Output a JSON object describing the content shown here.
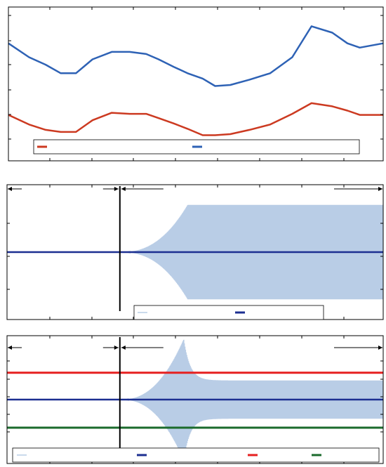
{
  "colors": {
    "red": "#cc3a21",
    "blue": "#2e62b5",
    "light_blue": "#b9cde6",
    "navy": "#1c2f91",
    "bright_red": "#e62020",
    "green": "#1b6b2c",
    "black": "#000000"
  },
  "chart_data": [
    {
      "type": "line",
      "title": "",
      "xlabel": "",
      "ylabel": "",
      "x": [
        0,
        0.15,
        0.27,
        0.38,
        0.49,
        0.61,
        0.75,
        0.88,
        1.0,
        1.09,
        1.2,
        1.3,
        1.41,
        1.5,
        1.61,
        1.75,
        1.9,
        2.06,
        2.2,
        2.35,
        2.46,
        2.55,
        2.72
      ],
      "xlim": [
        0,
        2.72
      ],
      "ylim": [
        0,
        7.2
      ],
      "grid": false,
      "legend": "bottom",
      "series": [
        {
          "color_key": "blue",
          "values": [
            5.5,
            4.85,
            4.5,
            4.1,
            4.1,
            4.75,
            5.1,
            5.1,
            5.0,
            4.75,
            4.4,
            4.1,
            3.85,
            3.5,
            3.55,
            3.8,
            4.1,
            4.85,
            6.3,
            6.0,
            5.5,
            5.3,
            5.5
          ]
        },
        {
          "color_key": "red",
          "values": [
            2.15,
            1.7,
            1.45,
            1.35,
            1.35,
            1.9,
            2.25,
            2.2,
            2.2,
            2.0,
            1.75,
            1.5,
            1.2,
            1.2,
            1.25,
            1.45,
            1.7,
            2.2,
            2.7,
            2.55,
            2.35,
            2.15,
            2.15
          ]
        }
      ],
      "legend_entries": [
        {
          "color_key": "red"
        },
        {
          "color_key": "blue"
        }
      ]
    },
    {
      "type": "line",
      "title": "",
      "xlim": [
        0,
        1
      ],
      "ylim": [
        -1,
        1
      ],
      "grid": false,
      "legend": "bottom-center",
      "vline_x": 0.3,
      "oscillation": {
        "start": 0.3,
        "peak_x": 0.48,
        "amplitude_peak": 0.7,
        "amplitude_steady": 0.7
      },
      "series": [
        {
          "color_key": "light_blue",
          "kind": "oscillation"
        },
        {
          "color_key": "navy",
          "kind": "flat",
          "value": 0
        }
      ],
      "legend_entries": [
        {
          "color_key": "light_blue"
        },
        {
          "color_key": "navy"
        }
      ]
    },
    {
      "type": "line",
      "title": "",
      "xlim": [
        0,
        1
      ],
      "ylim": [
        -1,
        1
      ],
      "grid": false,
      "legend": "bottom",
      "vline_x": 0.3,
      "oscillation": {
        "start": 0.3,
        "peak_x": 0.47,
        "amplitude_peak": 0.95,
        "amplitude_steady": 0.3
      },
      "series": [
        {
          "color_key": "light_blue",
          "kind": "oscillation"
        },
        {
          "color_key": "navy",
          "kind": "flat",
          "value": 0
        },
        {
          "color_key": "bright_red",
          "kind": "flat",
          "value": 0.42
        },
        {
          "color_key": "green",
          "kind": "flat",
          "value": -0.44
        }
      ],
      "legend_entries": [
        {
          "color_key": "light_blue"
        },
        {
          "color_key": "navy"
        },
        {
          "color_key": "bright_red"
        },
        {
          "color_key": "green"
        }
      ]
    }
  ]
}
